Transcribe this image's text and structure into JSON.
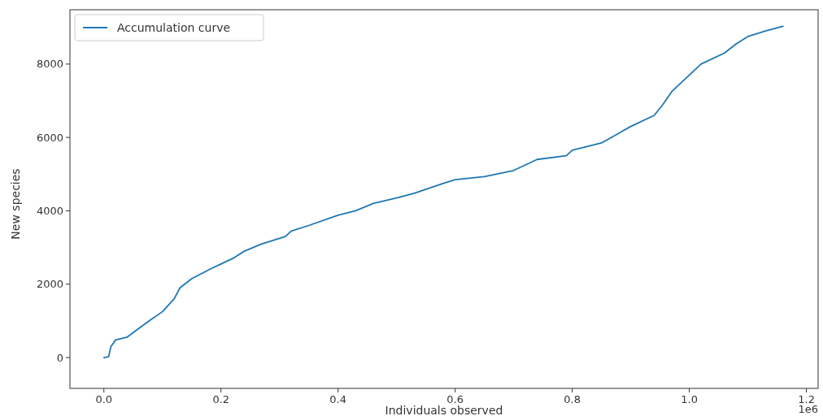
{
  "chart_data": {
    "type": "line",
    "xlabel": "Individuals observed",
    "ylabel": "New species",
    "annotations": [
      "1e6"
    ],
    "x": [
      0,
      0.008,
      0.012,
      0.02,
      0.04,
      0.06,
      0.08,
      0.1,
      0.12,
      0.13,
      0.15,
      0.18,
      0.2,
      0.22,
      0.24,
      0.27,
      0.3,
      0.31,
      0.32,
      0.35,
      0.4,
      0.43,
      0.46,
      0.5,
      0.53,
      0.58,
      0.6,
      0.65,
      0.7,
      0.72,
      0.74,
      0.79,
      0.8,
      0.85,
      0.9,
      0.94,
      0.955,
      0.97,
      1.0,
      1.02,
      1.06,
      1.08,
      1.1,
      1.13,
      1.16
    ],
    "series": [
      {
        "name": "Accumulation curve",
        "color": "#1f77b4",
        "values": [
          0,
          20,
          300,
          480,
          560,
          800,
          1030,
          1250,
          1600,
          1900,
          2150,
          2400,
          2550,
          2700,
          2900,
          3100,
          3250,
          3300,
          3450,
          3600,
          3880,
          4000,
          4200,
          4350,
          4480,
          4750,
          4850,
          4930,
          5100,
          5250,
          5400,
          5500,
          5650,
          5850,
          6300,
          6600,
          6900,
          7250,
          7700,
          8000,
          8300,
          8550,
          8750,
          8900,
          9030
        ]
      }
    ],
    "xlim": [
      -0.058,
      1.22
    ],
    "ylim": [
      -840,
      9480
    ],
    "xticks": [
      {
        "value": 0,
        "label": "0.0"
      },
      0.2,
      0.4,
      0.6,
      0.8,
      {
        "value": 1,
        "label": "1.0"
      },
      1.2
    ],
    "yticks": [
      0,
      2000,
      4000,
      6000,
      8000
    ],
    "legend": "top left",
    "grid": false,
    "line_style": "solid",
    "marker": "none"
  }
}
